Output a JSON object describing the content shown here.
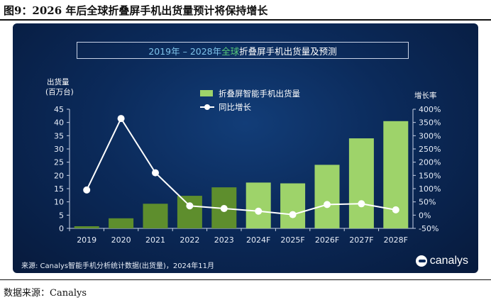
{
  "figure_title": "图9：2026 年后全球折叠屏手机出货量预计将保持增长",
  "chart_header": {
    "period_label": "2019年 – 2028年",
    "scope_label": "全球",
    "subject_label": "折叠屏手机出货量及预测"
  },
  "source_note": "来源: Canalys智能手机分析统计数据(出货量)，2024年11月",
  "brand_name": "canalys",
  "footer_source": "数据来源：Canalys",
  "chart_data": {
    "type": "bar",
    "categories": [
      "2019",
      "2020",
      "2021",
      "2022",
      "2023",
      "2024F",
      "2025F",
      "2026F",
      "2027F",
      "2028F"
    ],
    "series": [
      {
        "name": "折叠屏智能手机出货量",
        "kind": "bar",
        "axis": "left",
        "values": [
          0.8,
          3.8,
          9.3,
          12.3,
          15.5,
          17.3,
          17.0,
          24.0,
          34.0,
          40.5
        ],
        "colors": [
          "#5e8e2d",
          "#5e8e2d",
          "#5e8e2d",
          "#5e8e2d",
          "#5e8e2d",
          "#9ed36a",
          "#9ed36a",
          "#9ed36a",
          "#9ed36a",
          "#9ed36a"
        ]
      },
      {
        "name": "同比增长",
        "kind": "line",
        "axis": "right",
        "values": [
          95,
          365,
          160,
          35,
          25,
          15,
          2,
          40,
          43,
          20
        ],
        "color": "#ffffff"
      }
    ],
    "y_left": {
      "label_line1": "出货量",
      "label_line2": "(百万台)",
      "ylim": [
        0,
        45
      ],
      "ticks": [
        "0",
        "5",
        "10",
        "15",
        "20",
        "25",
        "30",
        "35",
        "40",
        "45"
      ]
    },
    "y_right": {
      "label": "增长率",
      "ylim": [
        -50,
        400
      ],
      "ticks": [
        "-50%",
        "0%",
        "50%",
        "100%",
        "150%",
        "200%",
        "250%",
        "300%",
        "350%",
        "400%"
      ]
    },
    "legend_position": "top-center",
    "grid": false
  }
}
